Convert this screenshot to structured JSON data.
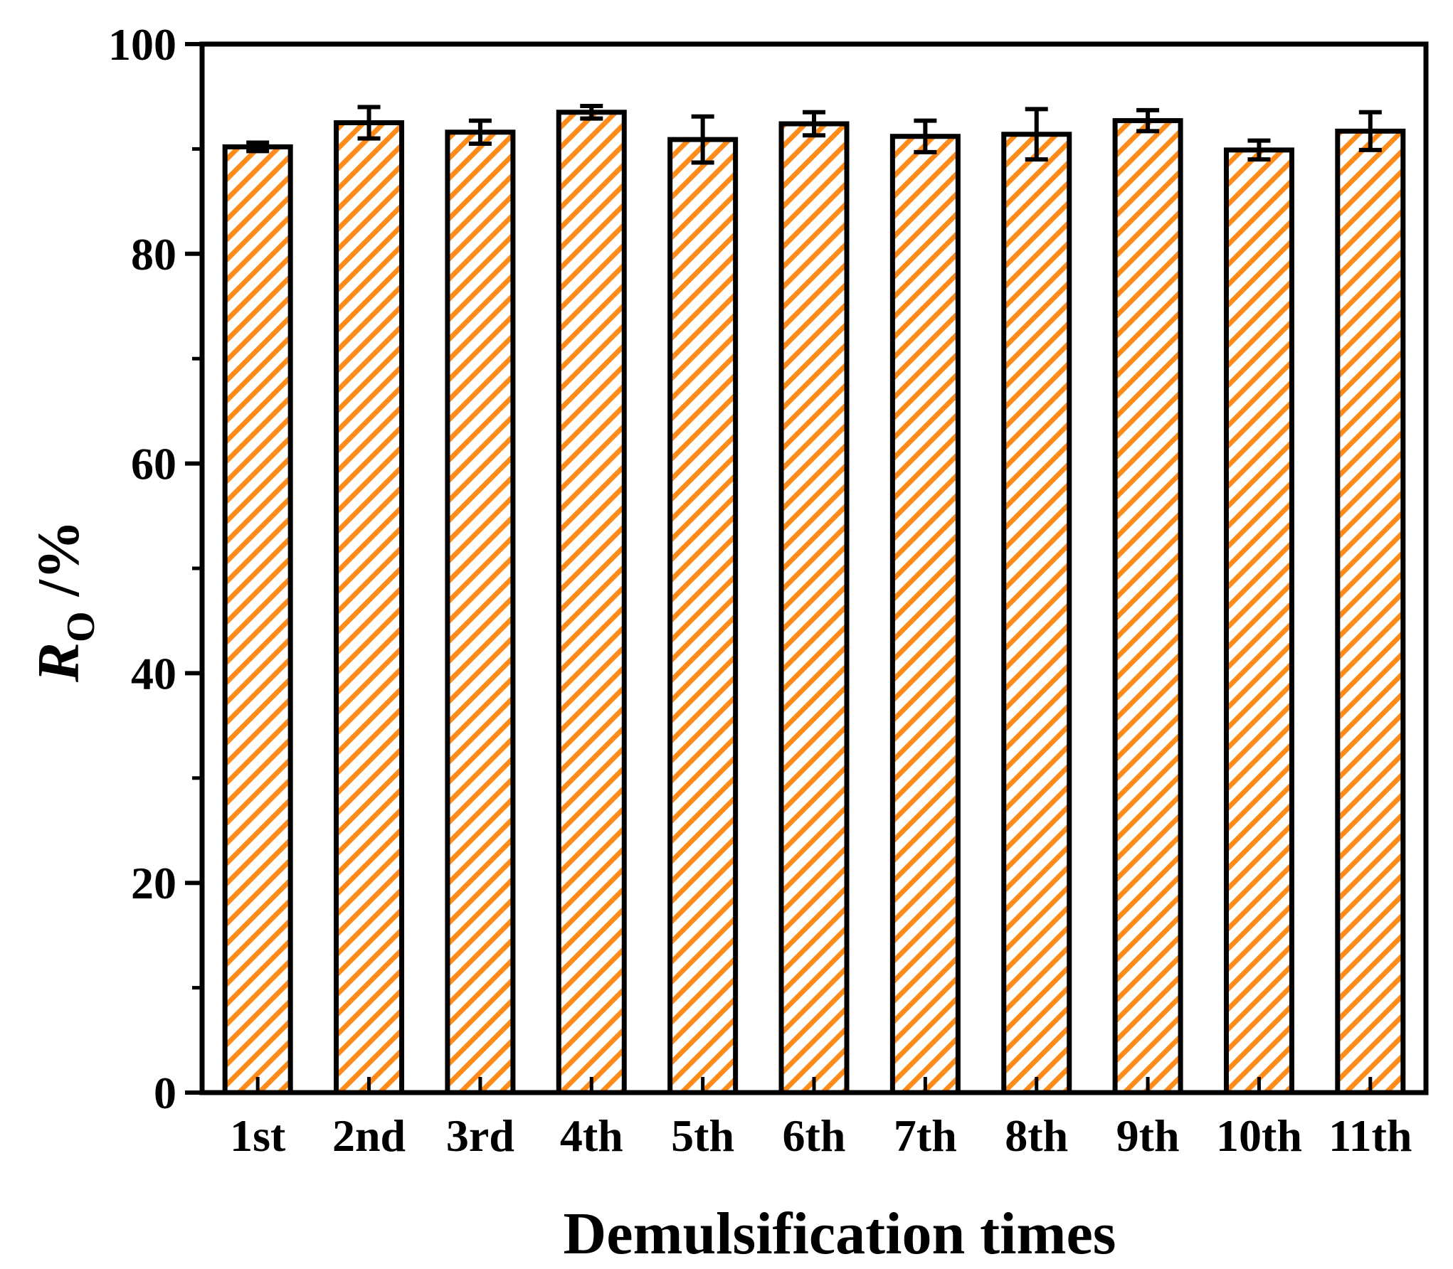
{
  "chart_data": {
    "type": "bar",
    "categories": [
      "1st",
      "2nd",
      "3rd",
      "4th",
      "5th",
      "6th",
      "7th",
      "8th",
      "9th",
      "10th",
      "11th"
    ],
    "values": [
      90.2,
      92.5,
      91.6,
      93.5,
      90.9,
      92.4,
      91.2,
      91.4,
      92.7,
      89.9,
      91.7
    ],
    "errors": [
      0.4,
      1.5,
      1.1,
      0.6,
      2.2,
      1.1,
      1.5,
      2.4,
      1.0,
      0.9,
      1.8
    ],
    "xlabel": "Demulsification times",
    "ylabel_main": "R",
    "ylabel_sub": "O",
    "ylabel_unit": " /%",
    "ylim": [
      0,
      100
    ],
    "yticks": [
      "0",
      "20",
      "40",
      "60",
      "80",
      "100"
    ],
    "ytick_values": [
      0,
      20,
      40,
      60,
      80,
      100
    ],
    "grid": false,
    "bar_fill": "#ffffff",
    "hatch_color": "#ff8c1a",
    "edge_color": "#000000"
  }
}
